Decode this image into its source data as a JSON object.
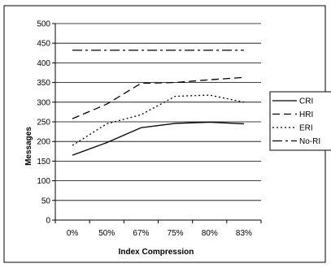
{
  "chart_data": {
    "type": "line",
    "title": "",
    "xlabel": "Index Compression",
    "ylabel": "Messages",
    "categories": [
      "0%",
      "50%",
      "67%",
      "75%",
      "80%",
      "83%"
    ],
    "ylim": [
      0,
      500
    ],
    "yticks": [
      0,
      50,
      100,
      150,
      200,
      250,
      300,
      350,
      400,
      450,
      500
    ],
    "grid": true,
    "legend_position": "right",
    "series": [
      {
        "name": "CRI",
        "values": [
          165,
          197,
          235,
          246,
          249,
          245
        ],
        "color": "#000000",
        "dash": "solid"
      },
      {
        "name": "HRI",
        "values": [
          258,
          295,
          348,
          350,
          357,
          363
        ],
        "color": "#000000",
        "dash": "dashed"
      },
      {
        "name": "ERI",
        "values": [
          190,
          245,
          268,
          315,
          318,
          300
        ],
        "color": "#000000",
        "dash": "dotted"
      },
      {
        "name": "No-RI",
        "values": [
          432,
          432,
          432,
          432,
          432,
          432
        ],
        "color": "#000000",
        "dash": "dashdot"
      }
    ]
  }
}
